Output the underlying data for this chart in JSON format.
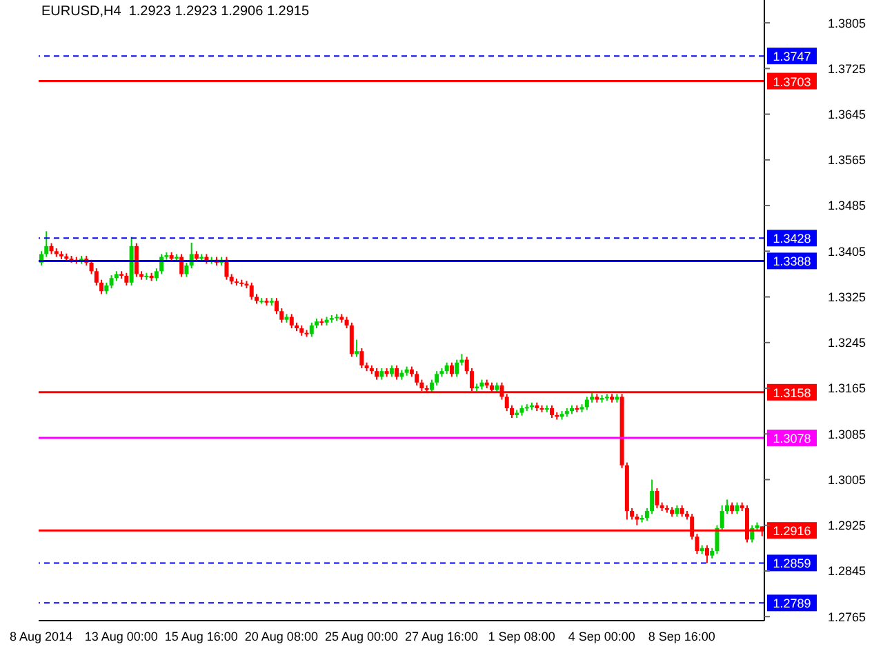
{
  "chart_data": {
    "type": "candlestick",
    "title": "EURUSD,H4  1.2923 1.2923 1.2906 1.2915",
    "categories": [
      "8 Aug 2014",
      null,
      null,
      null,
      null,
      null,
      null,
      null,
      null,
      null,
      null,
      null,
      null,
      null,
      null,
      null,
      "13 Aug 00:00",
      null,
      null,
      null,
      null,
      null,
      null,
      null,
      null,
      null,
      null,
      null,
      null,
      null,
      null,
      null,
      "15 Aug 16:00",
      null,
      null,
      null,
      null,
      null,
      null,
      null,
      null,
      null,
      null,
      null,
      null,
      null,
      null,
      null,
      "20 Aug 08:00",
      null,
      null,
      null,
      null,
      null,
      null,
      null,
      null,
      null,
      null,
      null,
      null,
      null,
      null,
      null,
      "25 Aug 00:00",
      null,
      null,
      null,
      null,
      null,
      null,
      null,
      null,
      null,
      null,
      null,
      null,
      null,
      null,
      null,
      "27 Aug 16:00",
      null,
      null,
      null,
      null,
      null,
      null,
      null,
      null,
      null,
      null,
      null,
      null,
      null,
      null,
      null,
      "1 Sep 08:00",
      null,
      null,
      null,
      null,
      null,
      null,
      null,
      null,
      null,
      null,
      null,
      null,
      null,
      null,
      null,
      "4 Sep 00:00",
      null,
      null,
      null,
      null,
      null,
      null,
      null,
      null,
      null,
      null,
      null,
      null,
      null,
      null,
      null,
      "8 Sep 16:00",
      null,
      null,
      null,
      null,
      null,
      null,
      null,
      null,
      null,
      null,
      null,
      null,
      null,
      null,
      null,
      null
    ],
    "colors": [
      "#00d000",
      "#00d000",
      "#ff0000",
      "#ff0000",
      "#ff0000",
      "#ff0000",
      "#ff0000",
      "#ff0000",
      "#00d000",
      "#ff0000",
      "#ff0000",
      "#ff0000",
      "#ff0000",
      "#00d000",
      "#00d000",
      "#00d000",
      "#ff0000",
      "#ff0000",
      "#00d000",
      "#ff0000",
      "#ff0000",
      "#00d000",
      "#ff0000",
      "#00d000",
      "#00d000",
      "#00d000",
      "#ff0000",
      "#00d000",
      "#ff0000",
      "#00d000",
      "#00d000",
      "#ff0000",
      "#00d000",
      "#ff0000",
      "#00d000",
      "#ff0000",
      "#00d000",
      "#ff0000",
      "#ff0000",
      "#ff0000",
      "#ff0000",
      "#ff0000",
      "#ff0000",
      "#ff0000",
      "#00d000",
      "#ff0000",
      "#00d000",
      "#ff0000",
      "#ff0000",
      "#00d000",
      "#ff0000",
      "#ff0000",
      "#ff0000",
      "#ff0000",
      "#00d000",
      "#00d000",
      "#ff0000",
      "#00d000",
      "#00d000",
      "#00d000",
      "#ff0000",
      "#ff0000",
      "#ff0000",
      "#00d000",
      "#ff0000",
      "#ff0000",
      "#ff0000",
      "#ff0000",
      "#00d000",
      "#ff0000",
      "#00d000",
      "#ff0000",
      "#00d000",
      "#00d000",
      "#ff0000",
      "#ff0000",
      "#ff0000",
      "#ff0000",
      "#00d000",
      "#00d000",
      "#00d000",
      "#00d000",
      "#ff0000",
      "#00d000",
      "#00d000",
      "#ff0000",
      "#ff0000",
      "#00d000",
      "#00d000",
      "#ff0000",
      "#ff0000",
      "#00d000",
      "#ff0000",
      "#ff0000",
      "#ff0000",
      "#00d000",
      "#00d000",
      "#00d000",
      "#00d000",
      "#ff0000",
      "#ff0000",
      "#00d000",
      "#ff0000",
      "#ff0000",
      "#00d000",
      "#00d000",
      "#00d000",
      "#ff0000",
      "#00d000",
      "#00d000",
      "#00d000",
      "#ff0000",
      "#00d000",
      "#00d000",
      "#ff0000",
      "#00d000",
      "#ff0000",
      "#ff0000",
      "#ff0000",
      "#ff0000",
      "#00d000",
      "#00d000",
      "#00d000",
      "#ff0000",
      "#ff0000",
      "#ff0000",
      "#ff0000",
      "#00d000",
      "#ff0000",
      "#ff0000",
      "#ff0000",
      "#ff0000",
      "#00d000",
      "#ff0000",
      "#00d000",
      "#00d000",
      "#00d000",
      "#00d000",
      "#ff0000",
      "#00d000",
      "#ff0000",
      "#ff0000",
      "#00d000",
      "#00d000",
      "#ff0000"
    ],
    "ohlc": [
      [
        1.3385,
        1.3405,
        1.338,
        1.34
      ],
      [
        1.34,
        1.344,
        1.3395,
        1.3414
      ],
      [
        1.3414,
        1.3419,
        1.34,
        1.3405
      ],
      [
        1.3405,
        1.341,
        1.3395,
        1.34
      ],
      [
        1.34,
        1.3405,
        1.3391,
        1.3396
      ],
      [
        1.3396,
        1.3401,
        1.3387,
        1.3392
      ],
      [
        1.3392,
        1.3397,
        1.3385,
        1.339
      ],
      [
        1.339,
        1.3395,
        1.3383,
        1.3388
      ],
      [
        1.3388,
        1.3397,
        1.3383,
        1.3392
      ],
      [
        1.3392,
        1.3397,
        1.338,
        1.3385
      ],
      [
        1.3385,
        1.339,
        1.3365,
        1.337
      ],
      [
        1.337,
        1.3375,
        1.3345,
        1.335
      ],
      [
        1.335,
        1.3355,
        1.333,
        1.3335
      ],
      [
        1.3335,
        1.335,
        1.333,
        1.3345
      ],
      [
        1.3345,
        1.3363,
        1.334,
        1.3358
      ],
      [
        1.3358,
        1.337,
        1.3353,
        1.3365
      ],
      [
        1.3365,
        1.337,
        1.3357,
        1.3362
      ],
      [
        1.3362,
        1.3367,
        1.3345,
        1.335
      ],
      [
        1.335,
        1.343,
        1.3345,
        1.3414
      ],
      [
        1.3414,
        1.3419,
        1.336,
        1.3365
      ],
      [
        1.3365,
        1.337,
        1.3355,
        1.336
      ],
      [
        1.336,
        1.3367,
        1.3355,
        1.3362
      ],
      [
        1.3362,
        1.3367,
        1.3353,
        1.3358
      ],
      [
        1.3358,
        1.3375,
        1.3353,
        1.337
      ],
      [
        1.337,
        1.34,
        1.3365,
        1.3395
      ],
      [
        1.3395,
        1.3403,
        1.339,
        1.3398
      ],
      [
        1.3398,
        1.3403,
        1.3387,
        1.3392
      ],
      [
        1.3392,
        1.34,
        1.3387,
        1.3395
      ],
      [
        1.3395,
        1.34,
        1.336,
        1.3365
      ],
      [
        1.3365,
        1.3385,
        1.336,
        1.338
      ],
      [
        1.338,
        1.342,
        1.3375,
        1.34
      ],
      [
        1.34,
        1.3405,
        1.3387,
        1.3392
      ],
      [
        1.3392,
        1.34,
        1.3387,
        1.3395
      ],
      [
        1.3395,
        1.34,
        1.3383,
        1.3388
      ],
      [
        1.3388,
        1.3395,
        1.3383,
        1.339
      ],
      [
        1.339,
        1.3395,
        1.338,
        1.3385
      ],
      [
        1.3385,
        1.3395,
        1.338,
        1.339
      ],
      [
        1.339,
        1.3395,
        1.3355,
        1.336
      ],
      [
        1.336,
        1.3365,
        1.3347,
        1.3352
      ],
      [
        1.3352,
        1.3357,
        1.3345,
        1.335
      ],
      [
        1.335,
        1.3355,
        1.3343,
        1.3348
      ],
      [
        1.3348,
        1.3353,
        1.334,
        1.3345
      ],
      [
        1.3345,
        1.335,
        1.332,
        1.3325
      ],
      [
        1.3325,
        1.333,
        1.3313,
        1.3318
      ],
      [
        1.3318,
        1.3323,
        1.3313,
        1.3318
      ],
      [
        1.3318,
        1.3323,
        1.331,
        1.3315
      ],
      [
        1.3315,
        1.3323,
        1.331,
        1.3318
      ],
      [
        1.3318,
        1.3323,
        1.3295,
        1.33
      ],
      [
        1.33,
        1.3305,
        1.328,
        1.3285
      ],
      [
        1.3285,
        1.3295,
        1.328,
        1.329
      ],
      [
        1.329,
        1.3295,
        1.327,
        1.3275
      ],
      [
        1.3275,
        1.328,
        1.3265,
        1.327
      ],
      [
        1.327,
        1.3275,
        1.3257,
        1.3262
      ],
      [
        1.3262,
        1.3267,
        1.3255,
        1.326
      ],
      [
        1.326,
        1.328,
        1.3255,
        1.3275
      ],
      [
        1.3275,
        1.3287,
        1.327,
        1.3282
      ],
      [
        1.3282,
        1.3287,
        1.3275,
        1.328
      ],
      [
        1.328,
        1.329,
        1.3275,
        1.3285
      ],
      [
        1.3285,
        1.3293,
        1.328,
        1.3288
      ],
      [
        1.3288,
        1.3295,
        1.3283,
        1.329
      ],
      [
        1.329,
        1.3295,
        1.328,
        1.3285
      ],
      [
        1.3285,
        1.329,
        1.327,
        1.3275
      ],
      [
        1.3275,
        1.328,
        1.322,
        1.3225
      ],
      [
        1.3225,
        1.325,
        1.322,
        1.323
      ],
      [
        1.323,
        1.3235,
        1.32,
        1.3205
      ],
      [
        1.3205,
        1.321,
        1.3195,
        1.32
      ],
      [
        1.32,
        1.3205,
        1.319,
        1.3195
      ],
      [
        1.3195,
        1.32,
        1.318,
        1.3185
      ],
      [
        1.3185,
        1.32,
        1.318,
        1.3195
      ],
      [
        1.3195,
        1.32,
        1.3185,
        1.319
      ],
      [
        1.319,
        1.3205,
        1.3185,
        1.32
      ],
      [
        1.32,
        1.3205,
        1.318,
        1.3185
      ],
      [
        1.3185,
        1.3197,
        1.318,
        1.3192
      ],
      [
        1.3192,
        1.3203,
        1.3187,
        1.3198
      ],
      [
        1.3198,
        1.3203,
        1.3185,
        1.319
      ],
      [
        1.319,
        1.3195,
        1.317,
        1.3175
      ],
      [
        1.3175,
        1.318,
        1.316,
        1.3165
      ],
      [
        1.3165,
        1.317,
        1.3157,
        1.3162
      ],
      [
        1.3162,
        1.318,
        1.3157,
        1.3175
      ],
      [
        1.3175,
        1.3195,
        1.317,
        1.319
      ],
      [
        1.319,
        1.32,
        1.3185,
        1.3195
      ],
      [
        1.3195,
        1.321,
        1.319,
        1.3205
      ],
      [
        1.3205,
        1.321,
        1.3185,
        1.319
      ],
      [
        1.319,
        1.3215,
        1.3185,
        1.321
      ],
      [
        1.321,
        1.3225,
        1.3205,
        1.3215
      ],
      [
        1.3215,
        1.322,
        1.319,
        1.3195
      ],
      [
        1.3195,
        1.32,
        1.316,
        1.3165
      ],
      [
        1.3165,
        1.3173,
        1.316,
        1.3168
      ],
      [
        1.3168,
        1.318,
        1.3163,
        1.3175
      ],
      [
        1.3175,
        1.318,
        1.3165,
        1.317
      ],
      [
        1.317,
        1.3175,
        1.3157,
        1.3162
      ],
      [
        1.3162,
        1.3175,
        1.3157,
        1.317
      ],
      [
        1.317,
        1.3175,
        1.3145,
        1.315
      ],
      [
        1.315,
        1.3155,
        1.3125,
        1.313
      ],
      [
        1.313,
        1.3135,
        1.3113,
        1.3118
      ],
      [
        1.3118,
        1.3127,
        1.3113,
        1.3122
      ],
      [
        1.3122,
        1.3135,
        1.3117,
        1.313
      ],
      [
        1.313,
        1.3137,
        1.3125,
        1.3132
      ],
      [
        1.3132,
        1.314,
        1.3127,
        1.3135
      ],
      [
        1.3135,
        1.314,
        1.3125,
        1.313
      ],
      [
        1.313,
        1.3135,
        1.3123,
        1.3128
      ],
      [
        1.3128,
        1.3135,
        1.3123,
        1.313
      ],
      [
        1.313,
        1.3135,
        1.3113,
        1.3118
      ],
      [
        1.3118,
        1.3123,
        1.311,
        1.3115
      ],
      [
        1.3115,
        1.3125,
        1.311,
        1.312
      ],
      [
        1.312,
        1.313,
        1.3115,
        1.3125
      ],
      [
        1.3125,
        1.3135,
        1.312,
        1.313
      ],
      [
        1.313,
        1.3135,
        1.3123,
        1.3128
      ],
      [
        1.3128,
        1.3137,
        1.3123,
        1.3132
      ],
      [
        1.3132,
        1.315,
        1.3127,
        1.3145
      ],
      [
        1.3145,
        1.3158,
        1.314,
        1.315
      ],
      [
        1.315,
        1.3155,
        1.314,
        1.3145
      ],
      [
        1.3145,
        1.3153,
        1.314,
        1.3148
      ],
      [
        1.3148,
        1.3155,
        1.3143,
        1.315
      ],
      [
        1.315,
        1.3155,
        1.314,
        1.3145
      ],
      [
        1.3145,
        1.3155,
        1.314,
        1.315
      ],
      [
        1.315,
        1.3155,
        1.3025,
        1.303
      ],
      [
        1.303,
        1.3035,
        1.2935,
        1.295
      ],
      [
        1.295,
        1.2955,
        1.2935,
        1.294
      ],
      [
        1.294,
        1.2945,
        1.2925,
        1.2935
      ],
      [
        1.2935,
        1.2943,
        1.293,
        1.2938
      ],
      [
        1.2938,
        1.2955,
        1.2933,
        1.295
      ],
      [
        1.295,
        1.3005,
        1.2945,
        1.2985
      ],
      [
        1.2985,
        1.299,
        1.2955,
        1.296
      ],
      [
        1.296,
        1.2965,
        1.295,
        1.2955
      ],
      [
        1.2955,
        1.296,
        1.2947,
        1.2952
      ],
      [
        1.2952,
        1.2957,
        1.294,
        1.2945
      ],
      [
        1.2945,
        1.296,
        1.294,
        1.2955
      ],
      [
        1.2955,
        1.296,
        1.294,
        1.2945
      ],
      [
        1.2945,
        1.295,
        1.2935,
        1.294
      ],
      [
        1.294,
        1.2945,
        1.29,
        1.2905
      ],
      [
        1.2905,
        1.291,
        1.2875,
        1.288
      ],
      [
        1.288,
        1.289,
        1.2875,
        1.2885
      ],
      [
        1.2885,
        1.289,
        1.2859,
        1.2872
      ],
      [
        1.2872,
        1.2885,
        1.2867,
        1.288
      ],
      [
        1.288,
        1.2925,
        1.2875,
        1.292
      ],
      [
        1.292,
        1.296,
        1.2915,
        1.295
      ],
      [
        1.295,
        1.297,
        1.2945,
        1.296
      ],
      [
        1.296,
        1.2965,
        1.2945,
        1.295
      ],
      [
        1.295,
        1.2965,
        1.2945,
        1.296
      ],
      [
        1.296,
        1.2965,
        1.295,
        1.2955
      ],
      [
        1.2955,
        1.296,
        1.2895,
        1.29
      ],
      [
        1.29,
        1.2925,
        1.2895,
        1.292
      ],
      [
        1.292,
        1.293,
        1.2915,
        1.2925
      ],
      [
        1.2923,
        1.2923,
        1.2906,
        1.2915
      ]
    ],
    "ylim": [
      1.2758,
      1.3845
    ],
    "yticks": [
      1.2765,
      1.2845,
      1.2925,
      1.3005,
      1.3085,
      1.3165,
      1.3245,
      1.3325,
      1.3405,
      1.3485,
      1.3565,
      1.3645,
      1.3725,
      1.3805
    ],
    "ref_lines": [
      {
        "axis": "y",
        "value": 1.3747,
        "label": "1.3747",
        "color": "#0000ff",
        "line_style": "dashed"
      },
      {
        "axis": "y",
        "value": 1.3703,
        "label": "1.3703",
        "color": "#ff0000"
      },
      {
        "axis": "y",
        "value": 1.3428,
        "label": "1.3428",
        "color": "#0000ff",
        "line_style": "dashed"
      },
      {
        "axis": "y",
        "value": 1.3388,
        "label": "1.3388",
        "color": "#0000ff"
      },
      {
        "axis": "y",
        "value": 1.3158,
        "label": "1.3158",
        "color": "#ff0000"
      },
      {
        "axis": "y",
        "value": 1.3078,
        "label": "1.3078",
        "color": "#ff00ff"
      },
      {
        "axis": "y",
        "value": 1.2916,
        "label": "1.2916",
        "color": "#ff0000"
      },
      {
        "axis": "y",
        "value": 1.2859,
        "label": "1.2859",
        "color": "#0000ff",
        "line_style": "dashed"
      },
      {
        "axis": "y",
        "value": 1.2789,
        "label": "1.2789",
        "color": "#0000ff",
        "line_style": "dashed"
      }
    ],
    "grid": false,
    "legend": false
  }
}
